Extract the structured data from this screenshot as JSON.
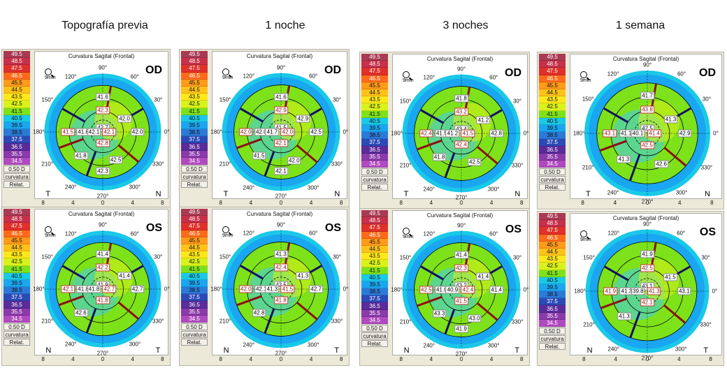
{
  "column_titles": [
    "Topografía previa",
    "1 noche",
    "3 noches",
    "1 semana"
  ],
  "map_title": "Curvatura Sagital (Frontal)",
  "zoom_label": "9mm",
  "legend": {
    "values": [
      "49.5",
      "48.5",
      "47.5",
      "46.5",
      "45.5",
      "44.5",
      "43.5",
      "42.5",
      "41.5",
      "40.5",
      "39.5",
      "38.5",
      "37.5",
      "36.5",
      "35.5",
      "34.5"
    ],
    "colors": [
      "#a93a54",
      "#c6304a",
      "#e0302a",
      "#ff6a1a",
      "#ff9a1a",
      "#ffc21a",
      "#ffe81a",
      "#d8f21a",
      "#7ee21a",
      "#1ac8e8",
      "#1aa6f0",
      "#2b7ad8",
      "#2b4ab8",
      "#5a2b9a",
      "#8a3aaa",
      "#b04ac0"
    ],
    "step": "0.50 D",
    "type_label": "curvatura",
    "mode_label": "Relat."
  },
  "letters": {
    "temporal": "T",
    "nasal": "N"
  },
  "degree_labels": [
    "90°",
    "60°",
    "30°",
    "0°",
    "330°",
    "300°",
    "270°",
    "240°",
    "210°",
    "180°",
    "150°",
    "120°"
  ],
  "axis_ticks": [
    "8",
    "4",
    "0",
    "4",
    "8"
  ],
  "maps": [
    {
      "eye": "OD",
      "values": [
        "41.6",
        "42.3",
        "42.0",
        "42.7",
        "41.5",
        "41.8",
        "42.1",
        "42.1",
        "42.0",
        "41.8",
        "42.8",
        "42.5",
        "42.3"
      ]
    },
    {
      "eye": "OD",
      "values": [
        "41.6",
        "42.9",
        "42.9",
        "41.5",
        "42.0",
        "42.0",
        "41.7",
        "42.0",
        "42.5",
        "41.5",
        "42.1",
        "42.0",
        "42.1"
      ]
    },
    {
      "eye": "OD",
      "values": [
        "41.8",
        "43.2",
        "41.2",
        "43.4",
        "42.4",
        "41.5",
        "41.2",
        "41.5",
        "42.8",
        "41.8",
        "42.4",
        "42.5"
      ]
    },
    {
      "eye": "OD",
      "values": [
        "41.7",
        "43.8",
        "41.3",
        "42.5",
        "43.1",
        "41.1",
        "40.1",
        "41.4",
        "42.9",
        "41.3",
        "42.5",
        "42.6"
      ]
    },
    {
      "eye": "OS",
      "values": [
        "41.4",
        "42.2",
        "41.4",
        "41.9",
        "42.1",
        "41.8",
        "41.8",
        "42.7",
        "42.7",
        "42.6",
        "41.8"
      ]
    },
    {
      "eye": "OS",
      "values": [
        "41.3",
        "42.4",
        "41.3",
        "42.5",
        "42.0",
        "42.1",
        "41.3",
        "41.5",
        "42.7",
        "42.8",
        "41.8"
      ]
    },
    {
      "eye": "OS",
      "values": [
        "41.4",
        "42.3",
        "41.4",
        "43.2",
        "42.5",
        "41.0",
        "40.9",
        "42.4",
        "41.4",
        "43.3",
        "41.5",
        "43.0",
        "41.9"
      ]
    },
    {
      "eye": "OS",
      "values": [
        "41.9",
        "42.5",
        "41.5",
        "43.1",
        "41.9",
        "41.3",
        "39.8",
        "41.3",
        "43.1",
        "41.3",
        "42.1"
      ]
    }
  ]
}
